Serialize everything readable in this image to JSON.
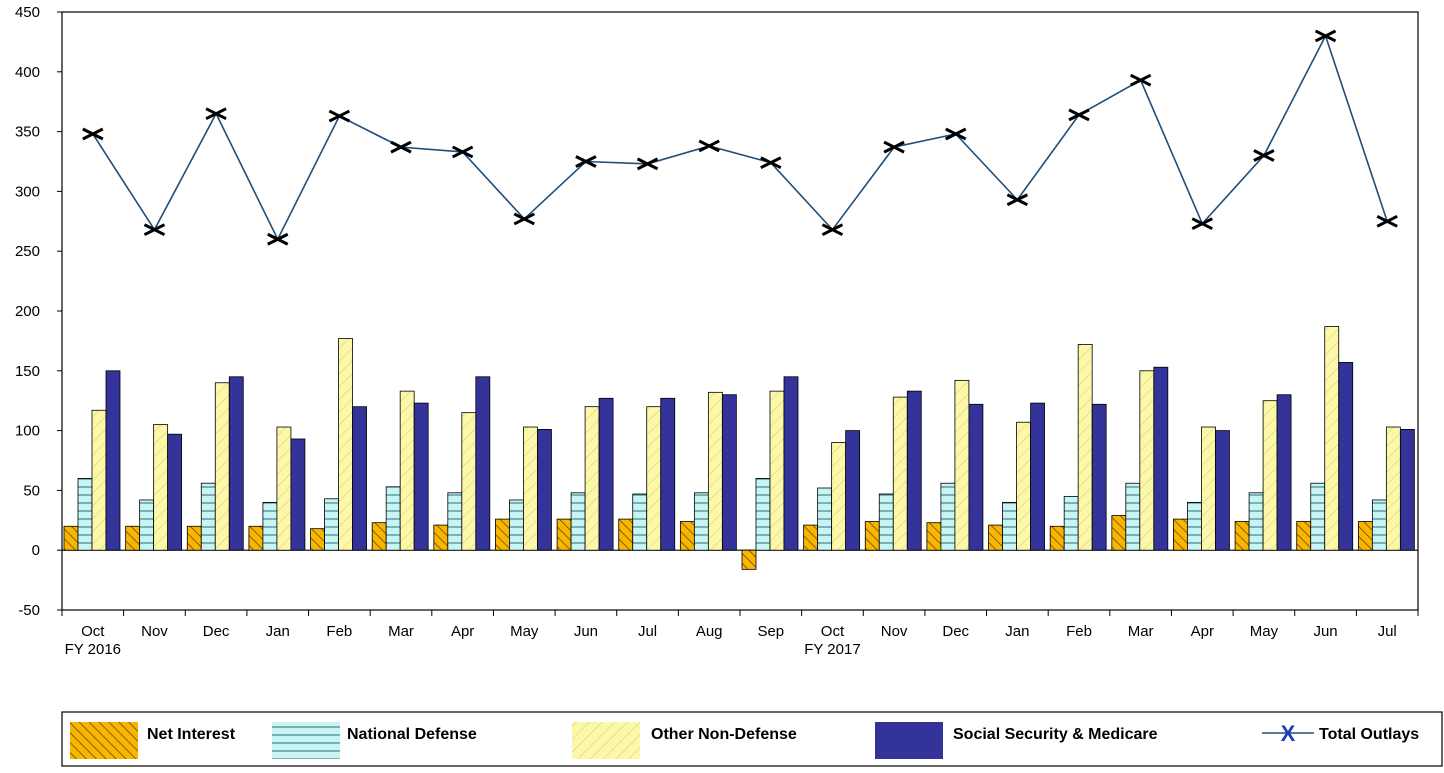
{
  "chart_data": {
    "type": "bar",
    "categories": [
      "Oct",
      "Nov",
      "Dec",
      "Jan",
      "Feb",
      "Mar",
      "Apr",
      "May",
      "Jun",
      "Jul",
      "Aug",
      "Sep",
      "Oct",
      "Nov",
      "Dec",
      "Jan",
      "Feb",
      "Mar",
      "Apr",
      "May",
      "Jun",
      "Jul"
    ],
    "fiscal_year_labels": [
      {
        "index": 0,
        "text": "FY 2016"
      },
      {
        "index": 12,
        "text": "FY 2017"
      }
    ],
    "ylim": [
      -50,
      450
    ],
    "yticks": [
      -50,
      0,
      50,
      100,
      150,
      200,
      250,
      300,
      350,
      400,
      450
    ],
    "ytick_labels": [
      "-50",
      "0",
      "50",
      "100",
      "150",
      "200",
      "250",
      "300",
      "350",
      "400",
      "450"
    ],
    "grid": false,
    "legend_position": "bottom",
    "series": [
      {
        "name": "Net Interest",
        "kind": "bar",
        "pattern": "diagonal-hatch",
        "color": "#f5b800",
        "hatch_color": "#8b3a00",
        "values": [
          20,
          20,
          20,
          20,
          18,
          23,
          21,
          26,
          26,
          26,
          24,
          -16,
          21,
          24,
          23,
          21,
          20,
          29,
          26,
          24,
          24,
          24
        ]
      },
      {
        "name": "National Defense",
        "kind": "bar",
        "pattern": "horizontal-lines",
        "color": "#c8f4f4",
        "hatch_color": "#2a6f78",
        "values": [
          60,
          42,
          56,
          40,
          43,
          53,
          48,
          42,
          48,
          47,
          48,
          60,
          52,
          47,
          56,
          40,
          45,
          56,
          40,
          48,
          56,
          42
        ]
      },
      {
        "name": "Other Non-Defense",
        "kind": "bar",
        "pattern": "light-diagonal",
        "color": "#fdf7a8",
        "hatch_color": "#c9c98a",
        "values": [
          117,
          105,
          140,
          103,
          177,
          133,
          115,
          103,
          120,
          120,
          132,
          133,
          90,
          128,
          142,
          107,
          172,
          150,
          103,
          125,
          187,
          103
        ]
      },
      {
        "name": "Social Security & Medicare",
        "kind": "bar",
        "pattern": "solid",
        "color": "#333399",
        "hatch_color": "#333399",
        "values": [
          150,
          97,
          145,
          93,
          120,
          123,
          145,
          101,
          127,
          127,
          130,
          145,
          100,
          133,
          122,
          123,
          122,
          153,
          100,
          130,
          157,
          101
        ]
      },
      {
        "name": "Total Outlays",
        "kind": "line",
        "marker": "x",
        "color": "#1f4e79",
        "marker_color": "#000000",
        "values": [
          348,
          268,
          365,
          260,
          363,
          337,
          333,
          277,
          325,
          323,
          338,
          324,
          268,
          337,
          348,
          293,
          364,
          393,
          273,
          330,
          430,
          275
        ]
      }
    ],
    "legend": {
      "items": [
        {
          "label": "Net Interest",
          "icon": "net-interest-swatch"
        },
        {
          "label": "National Defense",
          "icon": "national-defense-swatch"
        },
        {
          "label": "Other Non-Defense",
          "icon": "other-non-defense-swatch"
        },
        {
          "label": "Social Security & Medicare",
          "icon": "social-security-swatch"
        },
        {
          "label": "Total Outlays",
          "icon": "total-outlays-line-marker"
        }
      ],
      "marker_glyph": "X"
    }
  }
}
